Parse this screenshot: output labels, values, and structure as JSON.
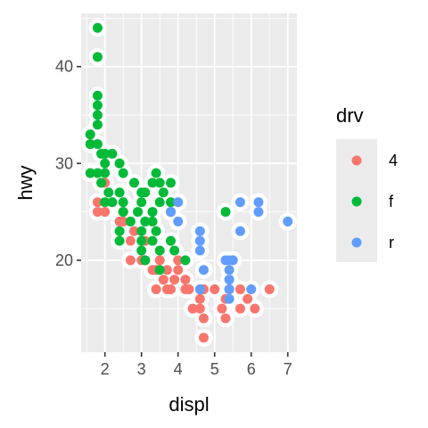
{
  "chart_data": {
    "type": "scatter",
    "xlabel": "displ",
    "ylabel": "hwy",
    "xlim": [
      1.35,
      7.25
    ],
    "ylim": [
      10.5,
      45.5
    ],
    "x_ticks": [
      2,
      3,
      4,
      5,
      6,
      7
    ],
    "y_ticks": [
      20,
      30,
      40
    ],
    "grid": true,
    "legend": {
      "title": "drv",
      "position": "right",
      "entries": [
        {
          "label": "4",
          "color": "#F8766D"
        },
        {
          "label": "f",
          "color": "#00BA38"
        },
        {
          "label": "r",
          "color": "#619CFF"
        }
      ]
    },
    "series": [
      {
        "name": "4",
        "color": "#F8766D",
        "points": [
          [
            1.8,
            26
          ],
          [
            1.8,
            25
          ],
          [
            2.0,
            28
          ],
          [
            2.0,
            25
          ],
          [
            2.5,
            24
          ],
          [
            2.5,
            25
          ],
          [
            2.8,
            23
          ],
          [
            3.1,
            20
          ],
          [
            3.1,
            22
          ],
          [
            3.6,
            18
          ],
          [
            3.7,
            17
          ],
          [
            3.7,
            19
          ],
          [
            3.9,
            18
          ],
          [
            4.0,
            19
          ],
          [
            4.0,
            20
          ],
          [
            4.2,
            17
          ],
          [
            4.3,
            17
          ],
          [
            4.6,
            17
          ],
          [
            4.6,
            15
          ],
          [
            4.7,
            14
          ],
          [
            4.7,
            12
          ],
          [
            5.2,
            15
          ],
          [
            5.3,
            16
          ],
          [
            5.3,
            14
          ],
          [
            5.4,
            17
          ],
          [
            5.7,
            15
          ],
          [
            5.9,
            16
          ],
          [
            6.1,
            15
          ],
          [
            6.5,
            17
          ],
          [
            4.6,
            16
          ],
          [
            4.7,
            17
          ],
          [
            5.0,
            17
          ],
          [
            3.8,
            17
          ],
          [
            3.3,
            19
          ],
          [
            3.0,
            20
          ],
          [
            2.7,
            20
          ],
          [
            4.4,
            15
          ],
          [
            4.2,
            18
          ],
          [
            3.4,
            17
          ],
          [
            3.4,
            19
          ],
          [
            2.7,
            22
          ],
          [
            3.5,
            20
          ],
          [
            2.4,
            24
          ],
          [
            2.2,
            26
          ],
          [
            5.7,
            17
          ]
        ]
      },
      {
        "name": "f",
        "color": "#00BA38",
        "points": [
          [
            1.8,
            44
          ],
          [
            1.8,
            41
          ],
          [
            1.8,
            37
          ],
          [
            1.8,
            36
          ],
          [
            1.8,
            35
          ],
          [
            1.8,
            34
          ],
          [
            1.6,
            33
          ],
          [
            1.6,
            32
          ],
          [
            1.8,
            32
          ],
          [
            1.9,
            31
          ],
          [
            2.0,
            31
          ],
          [
            2.2,
            31
          ],
          [
            2.4,
            30
          ],
          [
            1.6,
            29
          ],
          [
            1.8,
            29
          ],
          [
            2.0,
            29
          ],
          [
            2.5,
            29
          ],
          [
            2.8,
            28
          ],
          [
            3.4,
            29
          ],
          [
            1.9,
            28
          ],
          [
            2.1,
            27
          ],
          [
            2.4,
            27
          ],
          [
            2.2,
            26
          ],
          [
            2.5,
            26
          ],
          [
            3.3,
            28
          ],
          [
            3.5,
            28
          ],
          [
            3.8,
            28
          ],
          [
            3.0,
            27
          ],
          [
            3.1,
            27
          ],
          [
            3.6,
            27
          ],
          [
            3.8,
            26
          ],
          [
            3.0,
            26
          ],
          [
            3.5,
            26
          ],
          [
            2.5,
            25
          ],
          [
            2.9,
            25
          ],
          [
            3.3,
            25
          ],
          [
            3.8,
            25
          ],
          [
            3.1,
            24
          ],
          [
            2.7,
            24
          ],
          [
            3.3,
            24
          ],
          [
            2.4,
            23
          ],
          [
            3.0,
            23
          ],
          [
            3.4,
            23
          ],
          [
            3.0,
            22
          ],
          [
            3.3,
            22
          ],
          [
            3.8,
            22
          ],
          [
            3.0,
            21
          ],
          [
            3.5,
            21
          ],
          [
            3.9,
            21
          ],
          [
            3.1,
            20
          ],
          [
            3.5,
            19
          ],
          [
            5.3,
            25
          ],
          [
            2.0,
            30
          ],
          [
            2.0,
            26
          ],
          [
            2.4,
            22
          ],
          [
            4.2,
            20
          ]
        ]
      },
      {
        "name": "r",
        "color": "#619CFF",
        "points": [
          [
            3.8,
            25
          ],
          [
            4.0,
            24
          ],
          [
            4.0,
            26
          ],
          [
            4.6,
            23
          ],
          [
            4.6,
            22
          ],
          [
            4.6,
            21
          ],
          [
            5.4,
            20
          ],
          [
            5.4,
            18
          ],
          [
            5.4,
            17
          ],
          [
            5.4,
            16
          ],
          [
            5.7,
            26
          ],
          [
            5.7,
            23
          ],
          [
            6.2,
            26
          ],
          [
            6.2,
            25
          ],
          [
            7.0,
            24
          ],
          [
            6.0,
            17
          ],
          [
            5.3,
            20
          ],
          [
            5.5,
            20
          ],
          [
            4.7,
            19
          ],
          [
            4.6,
            17
          ],
          [
            5.4,
            19
          ]
        ]
      }
    ]
  }
}
